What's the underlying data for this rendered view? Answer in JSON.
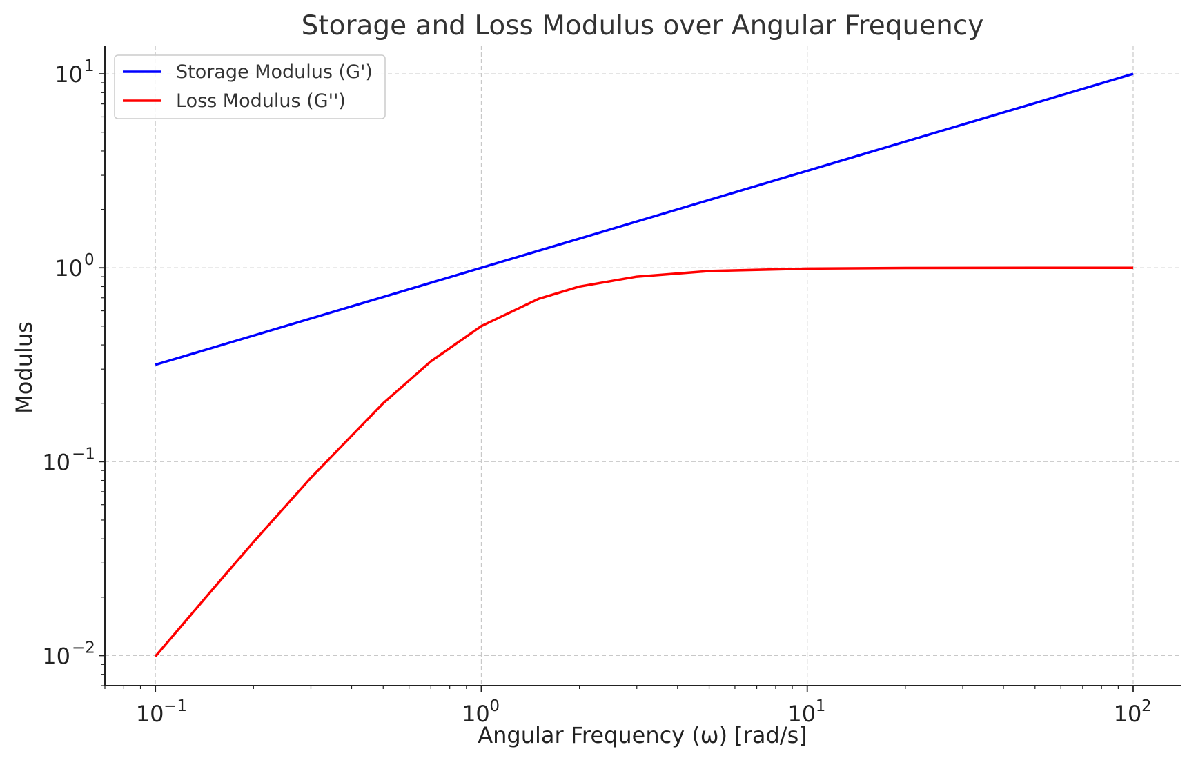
{
  "chart_data": {
    "type": "line",
    "title": "Storage and Loss Modulus over Angular Frequency",
    "xlabel": "Angular Frequency (ω) [rad/s]",
    "ylabel": "Modulus",
    "xscale": "log",
    "yscale": "log",
    "xlim": [
      0.07,
      140
    ],
    "ylim": [
      0.007,
      14
    ],
    "x_ticks": [
      {
        "value": 0.1,
        "base": "10",
        "exp": "−1"
      },
      {
        "value": 1,
        "base": "10",
        "exp": "0"
      },
      {
        "value": 10,
        "base": "10",
        "exp": "1"
      },
      {
        "value": 100,
        "base": "10",
        "exp": "2"
      }
    ],
    "y_ticks": [
      {
        "value": 0.01,
        "base": "10",
        "exp": "−2"
      },
      {
        "value": 0.1,
        "base": "10",
        "exp": "−1"
      },
      {
        "value": 1,
        "base": "10",
        "exp": "0"
      },
      {
        "value": 10,
        "base": "10",
        "exp": "1"
      }
    ],
    "grid": true,
    "legend_position": "top-left",
    "series": [
      {
        "name": "Storage Modulus (G')",
        "color": "#0000ff",
        "x": [
          0.1,
          0.2,
          0.5,
          1,
          2,
          5,
          10,
          20,
          50,
          100
        ],
        "y": [
          0.316,
          0.447,
          0.707,
          1.0,
          1.414,
          2.236,
          3.162,
          4.472,
          7.071,
          10.0
        ]
      },
      {
        "name": "Loss Modulus (G'')",
        "color": "#ff0000",
        "x": [
          0.1,
          0.15,
          0.2,
          0.3,
          0.5,
          0.7,
          1,
          1.5,
          2,
          3,
          5,
          10,
          20,
          50,
          100
        ],
        "y": [
          0.0099,
          0.022,
          0.0385,
          0.0826,
          0.2,
          0.329,
          0.5,
          0.692,
          0.8,
          0.9,
          0.962,
          0.99,
          0.9975,
          0.9996,
          0.9999
        ]
      }
    ]
  }
}
